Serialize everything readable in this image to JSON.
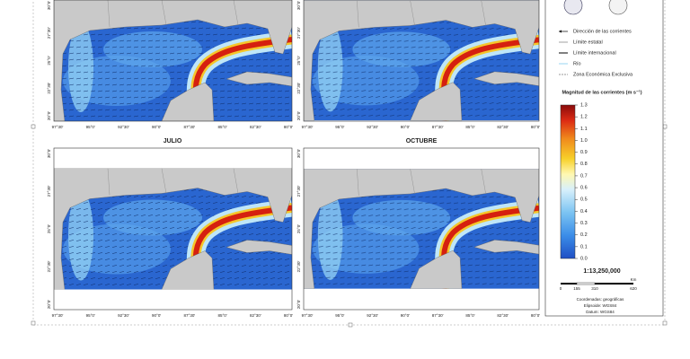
{
  "panel_titles": [
    "JULIO",
    "OCTUBRE"
  ],
  "lon_labels": [
    "97°30'",
    "95°0'",
    "92°30'",
    "90°0'",
    "87°30'",
    "85°0'",
    "82°30'",
    "80°0'"
  ],
  "lat_labels": [
    "30°0'",
    "27°30'",
    "25°0'",
    "22°30'",
    "20°0'"
  ],
  "legend": {
    "items": [
      "Dirección de las corrientes",
      "Límite estatal",
      "Límite internacional",
      "Río",
      "Zona Económica Exclusiva"
    ],
    "colorbar_title": "Magnitud de las corrientes (m s⁻¹)",
    "colorbar_ticks": [
      {
        "value": 0,
        "label": "0.0"
      },
      {
        "value": 0.1,
        "label": "0.1"
      },
      {
        "value": 0.2,
        "label": "0.2"
      },
      {
        "value": 0.3,
        "label": "0.3"
      },
      {
        "value": 0.4,
        "label": "0.4"
      },
      {
        "value": 0.5,
        "label": "0.5"
      },
      {
        "value": 0.6,
        "label": "0.6"
      },
      {
        "value": 0.7,
        "label": "0.7"
      },
      {
        "value": 0.8,
        "label": "0.8"
      },
      {
        "value": 0.9,
        "label": "0.9"
      },
      {
        "value": 1.0,
        "label": "1.0"
      },
      {
        "value": 1.1,
        "label": "1.1"
      },
      {
        "value": 1.2,
        "label": "1.2"
      },
      {
        "value": 1.3,
        "label": "1.3"
      }
    ],
    "colorbar_range": [
      0,
      1.3
    ]
  },
  "scale": {
    "ratio": "1:13,250,000",
    "unit": "Km",
    "ticks": [
      "0",
      "155",
      "310",
      "620"
    ]
  },
  "coords": [
    "Coordenadas: geográficas",
    "Elipsoide: WGS84",
    "Datum: WGS84"
  ]
}
